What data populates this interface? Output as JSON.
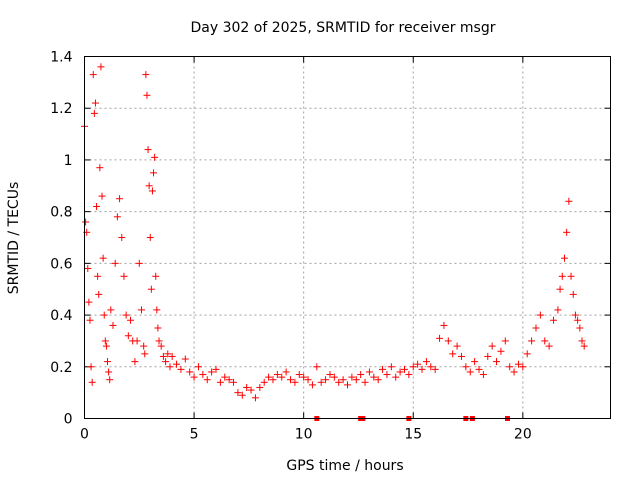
{
  "chart_data": {
    "type": "scatter",
    "title": "Day 302 of 2025, SRMTID for receiver msgr",
    "xlabel": "GPS time / hours",
    "ylabel": "SRMTID / TECUs",
    "xlim": [
      0,
      24
    ],
    "ylim": [
      0,
      1.4
    ],
    "xticks": [
      0,
      5,
      10,
      15,
      20
    ],
    "xtick_labels": [
      "0",
      "5",
      "10",
      "15",
      "20"
    ],
    "yticks": [
      0,
      0.2,
      0.4,
      0.6,
      0.8,
      1.0,
      1.2,
      1.4
    ],
    "ytick_labels": [
      "0",
      "0.2",
      "0.4",
      "0.6",
      "0.8",
      "1",
      "1.2",
      "1.4"
    ],
    "grid": true,
    "marker": "+",
    "color": "#ff0000",
    "series": [
      {
        "name": "SRMTID",
        "x": [
          0.0,
          0.05,
          0.1,
          0.15,
          0.2,
          0.25,
          0.3,
          0.35,
          0.4,
          0.45,
          0.5,
          0.55,
          0.6,
          0.65,
          0.7,
          0.75,
          0.8,
          0.85,
          0.9,
          0.95,
          1.0,
          1.05,
          1.1,
          1.15,
          1.2,
          1.3,
          1.4,
          1.5,
          1.6,
          1.7,
          1.8,
          1.9,
          2.0,
          2.1,
          2.2,
          2.3,
          2.4,
          2.5,
          2.6,
          2.7,
          2.75,
          2.8,
          2.85,
          2.9,
          2.95,
          3.0,
          3.05,
          3.1,
          3.15,
          3.2,
          3.25,
          3.3,
          3.35,
          3.4,
          3.5,
          3.6,
          3.7,
          3.8,
          3.9,
          4.0,
          4.2,
          4.4,
          4.6,
          4.8,
          5.0,
          5.2,
          5.4,
          5.6,
          5.8,
          6.0,
          6.2,
          6.4,
          6.6,
          6.8,
          7.0,
          7.2,
          7.4,
          7.6,
          7.8,
          8.0,
          8.2,
          8.4,
          8.6,
          8.8,
          9.0,
          9.2,
          9.4,
          9.6,
          9.8,
          10.0,
          10.2,
          10.4,
          10.6,
          10.8,
          11.0,
          11.2,
          11.4,
          11.6,
          11.8,
          12.0,
          12.2,
          12.4,
          12.6,
          12.8,
          13.0,
          13.2,
          13.4,
          13.6,
          13.8,
          14.0,
          14.2,
          14.4,
          14.6,
          14.8,
          15.0,
          15.2,
          15.4,
          15.6,
          15.8,
          16.0,
          16.2,
          16.4,
          16.6,
          16.8,
          17.0,
          17.2,
          17.4,
          17.6,
          17.8,
          18.0,
          18.2,
          18.4,
          18.6,
          18.8,
          19.0,
          19.2,
          19.4,
          19.6,
          19.8,
          20.0,
          20.2,
          20.4,
          20.6,
          20.8,
          21.0,
          21.2,
          21.4,
          21.6,
          21.7,
          21.8,
          21.9,
          22.0,
          22.1,
          22.2,
          22.3,
          22.4,
          22.5,
          22.6,
          22.7,
          22.8
        ],
        "y": [
          1.13,
          0.76,
          0.72,
          0.58,
          0.45,
          0.38,
          0.2,
          0.14,
          1.33,
          1.18,
          1.22,
          0.82,
          0.55,
          0.48,
          0.97,
          1.36,
          0.86,
          0.62,
          0.4,
          0.3,
          0.28,
          0.22,
          0.18,
          0.15,
          0.42,
          0.36,
          0.6,
          0.78,
          0.85,
          0.7,
          0.55,
          0.4,
          0.32,
          0.38,
          0.3,
          0.22,
          0.3,
          0.6,
          0.42,
          0.28,
          0.25,
          1.33,
          1.25,
          1.04,
          0.9,
          0.7,
          0.5,
          0.88,
          0.95,
          1.01,
          0.55,
          0.42,
          0.35,
          0.3,
          0.28,
          0.24,
          0.22,
          0.25,
          0.2,
          0.24,
          0.21,
          0.19,
          0.23,
          0.18,
          0.16,
          0.2,
          0.17,
          0.15,
          0.18,
          0.19,
          0.14,
          0.16,
          0.15,
          0.14,
          0.1,
          0.09,
          0.12,
          0.11,
          0.08,
          0.12,
          0.14,
          0.16,
          0.15,
          0.17,
          0.16,
          0.18,
          0.15,
          0.14,
          0.17,
          0.16,
          0.15,
          0.13,
          0.2,
          0.14,
          0.15,
          0.17,
          0.16,
          0.14,
          0.15,
          0.13,
          0.16,
          0.15,
          0.17,
          0.14,
          0.18,
          0.16,
          0.15,
          0.19,
          0.17,
          0.2,
          0.16,
          0.18,
          0.19,
          0.17,
          0.2,
          0.21,
          0.19,
          0.22,
          0.2,
          0.19,
          0.31,
          0.36,
          0.3,
          0.25,
          0.28,
          0.24,
          0.2,
          0.18,
          0.22,
          0.19,
          0.17,
          0.24,
          0.28,
          0.22,
          0.26,
          0.3,
          0.2,
          0.18,
          0.21,
          0.2,
          0.25,
          0.3,
          0.35,
          0.4,
          0.3,
          0.28,
          0.38,
          0.42,
          0.5,
          0.55,
          0.62,
          0.72,
          0.84,
          0.55,
          0.48,
          0.4,
          0.38,
          0.35,
          0.3,
          0.28
        ],
        "baseline_x": [
          10.6,
          12.6,
          12.7,
          14.8,
          17.4,
          17.7,
          19.3
        ]
      }
    ]
  }
}
